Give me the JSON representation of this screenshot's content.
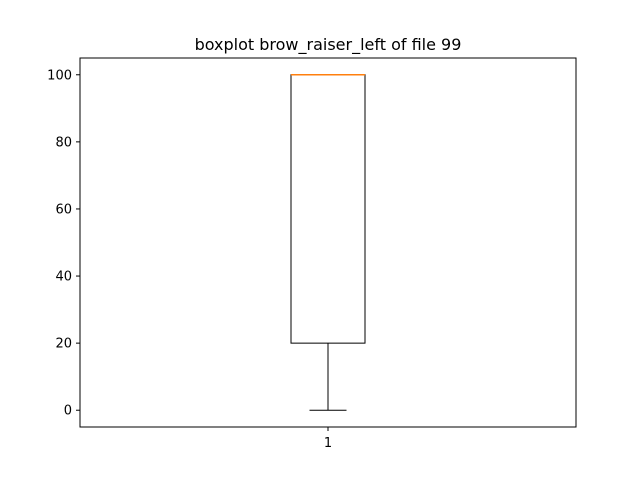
{
  "chart_data": {
    "type": "boxplot",
    "title": "boxplot brow_raiser_left of file 99",
    "xlabel": "",
    "ylabel": "",
    "categories": [
      "1"
    ],
    "boxes": [
      {
        "category": "1",
        "whisker_low": 0,
        "q1": 20,
        "median": 100,
        "q3": 100,
        "whisker_high": 100
      }
    ],
    "ylim": [
      -5,
      105
    ],
    "yticks": [
      0,
      20,
      40,
      60,
      80,
      100
    ],
    "grid": false,
    "colors": {
      "box": "#000000",
      "median": "#ff7f0e",
      "background": "#ffffff"
    }
  }
}
